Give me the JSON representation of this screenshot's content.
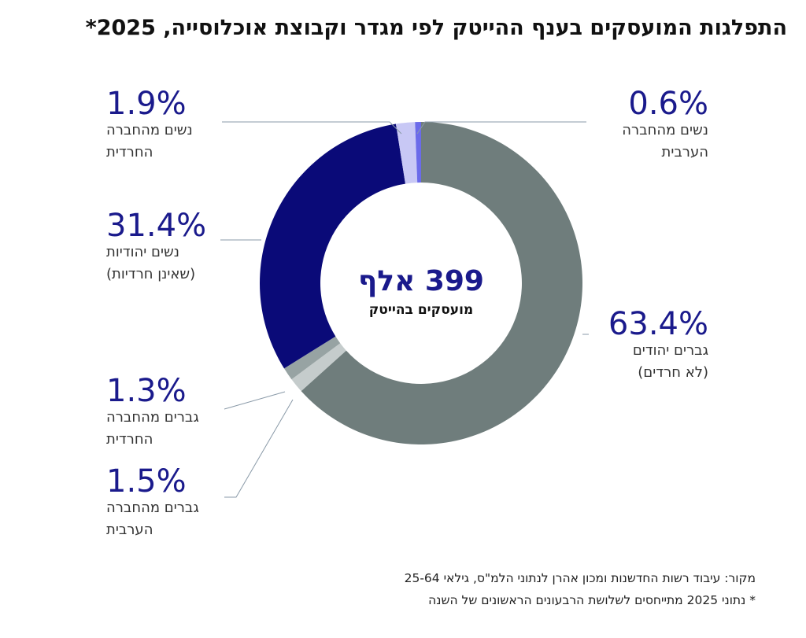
{
  "chart_data": {
    "type": "pie",
    "title": "התפלגות המועסקים בענף ההייטק לפי מגדר וקבוצת אוכלוסייה, 2025*",
    "center_value": "399 אלף",
    "center_label": "מועסקים בהייטק",
    "categories": [
      [
        "גברים יהודים",
        "(לא חרדים)"
      ],
      [
        "גברים מהחברה",
        "הערבית"
      ],
      [
        "גברים מהחברה",
        "החרדית"
      ],
      [
        "נשים יהודיות",
        "(שאינן חרדיות)"
      ],
      [
        "נשים מהחברה",
        "החרדית"
      ],
      [
        "נשים מהחברה",
        "הערבית"
      ]
    ],
    "values": [
      63.4,
      1.5,
      1.3,
      31.4,
      1.9,
      0.6
    ],
    "value_labels": [
      "63.4%",
      "1.5%",
      "1.3%",
      "31.4%",
      "1.9%",
      "0.6%"
    ],
    "colors": [
      "#6f7d7c",
      "#c5cccc",
      "#97a3a3",
      "#0a0a78",
      "#c8c8f5",
      "#6b6bea"
    ],
    "notes": [
      "מקור: עיבוד רשות החדשנות ומכון אהרן לנתוני הלמ\"ס, גילאי 25-64",
      "* נתוני 2025 מתייחסים לשלושת הרבעונים הראשונים של השנה"
    ]
  }
}
